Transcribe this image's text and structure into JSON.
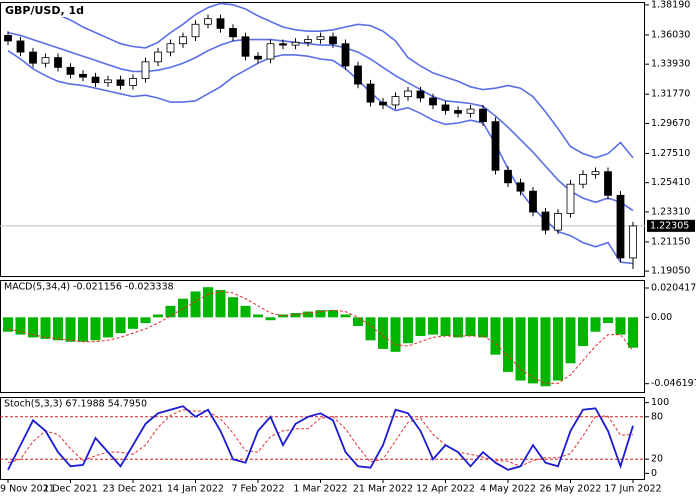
{
  "chart_data": [
    {
      "type": "candlestick",
      "title": "GBP/USD, 1d",
      "categories": [
        "9 Nov 2021",
        null,
        null,
        null,
        null,
        "1 Dec 2021",
        null,
        null,
        null,
        null,
        "23 Dec 2021",
        null,
        null,
        null,
        null,
        "14 Jan 2022",
        null,
        null,
        null,
        null,
        "7 Feb 2022",
        null,
        null,
        null,
        null,
        "1 Mar 2022",
        null,
        null,
        null,
        null,
        "21 Mar 2022",
        null,
        null,
        null,
        null,
        "12 Apr 2022",
        null,
        null,
        null,
        null,
        "4 May 2022",
        null,
        null,
        null,
        null,
        "26 May 2022",
        null,
        null,
        null,
        null,
        "17 Jun 2022"
      ],
      "open": [
        1.36,
        1.356,
        1.348,
        1.34,
        1.344,
        1.337,
        1.332,
        1.33,
        1.326,
        1.328,
        1.324,
        1.329,
        1.341,
        1.348,
        1.354,
        1.359,
        1.368,
        1.372,
        1.365,
        1.359,
        1.345,
        1.343,
        1.354,
        1.353,
        1.355,
        1.357,
        1.359,
        1.354,
        1.338,
        1.325,
        1.312,
        1.31,
        1.316,
        1.32,
        1.315,
        1.31,
        1.306,
        1.304,
        1.307,
        1.298,
        1.263,
        1.254,
        1.248,
        1.233,
        1.22,
        1.232,
        1.253,
        1.26,
        1.262,
        1.245,
        1.2
      ],
      "high": [
        1.363,
        1.359,
        1.351,
        1.347,
        1.347,
        1.34,
        1.335,
        1.333,
        1.331,
        1.331,
        1.332,
        1.344,
        1.351,
        1.357,
        1.362,
        1.371,
        1.375,
        1.375,
        1.368,
        1.362,
        1.348,
        1.357,
        1.357,
        1.358,
        1.36,
        1.362,
        1.362,
        1.357,
        1.341,
        1.328,
        1.315,
        1.319,
        1.323,
        1.323,
        1.318,
        1.313,
        1.309,
        1.31,
        1.31,
        1.301,
        1.266,
        1.257,
        1.251,
        1.236,
        1.235,
        1.256,
        1.263,
        1.265,
        1.265,
        1.248,
        1.226
      ],
      "low": [
        1.353,
        1.345,
        1.337,
        1.337,
        1.334,
        1.329,
        1.327,
        1.323,
        1.323,
        1.321,
        1.321,
        1.326,
        1.338,
        1.345,
        1.351,
        1.356,
        1.365,
        1.362,
        1.356,
        1.342,
        1.34,
        1.34,
        1.35,
        1.35,
        1.352,
        1.354,
        1.351,
        1.335,
        1.322,
        1.309,
        1.307,
        1.307,
        1.313,
        1.312,
        1.307,
        1.303,
        1.301,
        1.301,
        1.295,
        1.26,
        1.251,
        1.245,
        1.23,
        1.217,
        1.217,
        1.229,
        1.25,
        1.257,
        1.242,
        1.197,
        1.192
      ],
      "close": [
        1.356,
        1.348,
        1.34,
        1.344,
        1.337,
        1.332,
        1.33,
        1.326,
        1.328,
        1.324,
        1.329,
        1.341,
        1.348,
        1.354,
        1.359,
        1.368,
        1.372,
        1.365,
        1.359,
        1.345,
        1.343,
        1.354,
        1.353,
        1.355,
        1.357,
        1.359,
        1.354,
        1.338,
        1.325,
        1.312,
        1.31,
        1.316,
        1.32,
        1.315,
        1.31,
        1.306,
        1.304,
        1.307,
        1.298,
        1.263,
        1.254,
        1.248,
        1.233,
        1.22,
        1.232,
        1.253,
        1.26,
        1.262,
        1.245,
        1.2,
        1.223
      ],
      "up_color": "#ffffff",
      "down_color": "#000000",
      "bands": {
        "color": "#5b6ee8",
        "upper": [
          1.375,
          1.377,
          1.378,
          1.377,
          1.375,
          1.371,
          1.366,
          1.362,
          1.358,
          1.354,
          1.352,
          1.351,
          1.355,
          1.362,
          1.368,
          1.375,
          1.38,
          1.383,
          1.382,
          1.379,
          1.374,
          1.37,
          1.366,
          1.364,
          1.363,
          1.363,
          1.364,
          1.366,
          1.368,
          1.367,
          1.363,
          1.356,
          1.344,
          1.338,
          1.333,
          1.33,
          1.327,
          1.323,
          1.321,
          1.322,
          1.324,
          1.322,
          1.316,
          1.305,
          1.293,
          1.28,
          1.275,
          1.272,
          1.275,
          1.283,
          1.272
        ],
        "middle": [
          1.362,
          1.36,
          1.357,
          1.354,
          1.351,
          1.348,
          1.345,
          1.342,
          1.339,
          1.336,
          1.334,
          1.334,
          1.335,
          1.337,
          1.34,
          1.344,
          1.349,
          1.353,
          1.356,
          1.357,
          1.357,
          1.357,
          1.356,
          1.355,
          1.354,
          1.353,
          1.353,
          1.351,
          1.348,
          1.343,
          1.337,
          1.331,
          1.326,
          1.321,
          1.316,
          1.313,
          1.312,
          1.311,
          1.309,
          1.302,
          1.294,
          1.285,
          1.276,
          1.266,
          1.256,
          1.248,
          1.243,
          1.24,
          1.243,
          1.24,
          1.234
        ],
        "lower": [
          1.349,
          1.343,
          1.336,
          1.331,
          1.327,
          1.325,
          1.324,
          1.322,
          1.32,
          1.318,
          1.316,
          1.317,
          1.315,
          1.312,
          1.312,
          1.313,
          1.318,
          1.323,
          1.33,
          1.335,
          1.34,
          1.344,
          1.346,
          1.346,
          1.345,
          1.343,
          1.342,
          1.336,
          1.328,
          1.319,
          1.311,
          1.306,
          1.308,
          1.304,
          1.299,
          1.296,
          1.297,
          1.299,
          1.297,
          1.282,
          1.264,
          1.248,
          1.236,
          1.227,
          1.219,
          1.216,
          1.211,
          1.208,
          1.211,
          1.197,
          1.196
        ]
      },
      "ylim": [
        1.187,
        1.384
      ],
      "yticks": [
        {
          "value": 1.3819,
          "label": "1.38190"
        },
        {
          "value": 1.3603,
          "label": "1.36030"
        },
        {
          "value": 1.3393,
          "label": "1.33930"
        },
        {
          "value": 1.3177,
          "label": "1.31770"
        },
        {
          "value": 1.2967,
          "label": "1.29670"
        },
        {
          "value": 1.2751,
          "label": "1.27510"
        },
        {
          "value": 1.2541,
          "label": "1.25410"
        },
        {
          "value": 1.2331,
          "label": "1.23310"
        },
        {
          "value": 1.2115,
          "label": "1.21150"
        },
        {
          "value": 1.1905,
          "label": "1.19050"
        }
      ],
      "last_price": {
        "value": 1.22305,
        "label": "1.22305"
      }
    },
    {
      "type": "macd",
      "title": "MACD(5,34,4) -0.021156 -0.023338",
      "histogram": {
        "color": "#00b400",
        "values": [
          -0.01,
          -0.012,
          -0.014,
          -0.015,
          -0.016,
          -0.017,
          -0.017,
          -0.016,
          -0.014,
          -0.011,
          -0.008,
          -0.004,
          0.002,
          0.008,
          0.013,
          0.018,
          0.021,
          0.019,
          0.014,
          0.008,
          0.002,
          -0.002,
          0.002,
          0.003,
          0.004,
          0.005,
          0.005,
          0.002,
          -0.006,
          -0.016,
          -0.022,
          -0.024,
          -0.018,
          -0.013,
          -0.012,
          -0.013,
          -0.014,
          -0.013,
          -0.014,
          -0.026,
          -0.038,
          -0.044,
          -0.046,
          -0.048,
          -0.044,
          -0.032,
          -0.02,
          -0.01,
          -0.004,
          -0.012,
          -0.021156
        ]
      },
      "signal": {
        "color": "#e03030",
        "values": [
          -0.008,
          -0.01,
          -0.012,
          -0.014,
          -0.015,
          -0.016,
          -0.017,
          -0.017,
          -0.016,
          -0.014,
          -0.011,
          -0.008,
          -0.004,
          0.001,
          0.006,
          0.011,
          0.016,
          0.018,
          0.017,
          0.013,
          0.008,
          0.003,
          0.001,
          0.002,
          0.003,
          0.004,
          0.005,
          0.004,
          0.0,
          -0.006,
          -0.013,
          -0.019,
          -0.02,
          -0.017,
          -0.014,
          -0.013,
          -0.013,
          -0.013,
          -0.013,
          -0.018,
          -0.027,
          -0.036,
          -0.042,
          -0.046,
          -0.046,
          -0.04,
          -0.03,
          -0.02,
          -0.012,
          -0.012,
          -0.023338
        ]
      },
      "ylim": [
        -0.052,
        0.026
      ],
      "yticks": [
        0.020417,
        {
          "value": 0,
          "label": "0.00"
        },
        -0.046197
      ]
    },
    {
      "type": "stochastic",
      "title": "Stoch(5,3,3) 67.1988 54.7950",
      "main": {
        "color": "#1a1ad0",
        "values": [
          5,
          40,
          75,
          60,
          30,
          10,
          12,
          50,
          30,
          10,
          40,
          70,
          85,
          90,
          95,
          80,
          90,
          60,
          20,
          15,
          60,
          80,
          40,
          70,
          80,
          85,
          75,
          30,
          10,
          8,
          40,
          90,
          85,
          60,
          20,
          40,
          30,
          10,
          30,
          15,
          5,
          10,
          40,
          15,
          10,
          60,
          90,
          92,
          60,
          10,
          67.1988
        ]
      },
      "signal": {
        "color": "#e03030",
        "values": [
          15,
          20,
          45,
          60,
          55,
          35,
          18,
          25,
          30,
          30,
          27,
          40,
          65,
          82,
          90,
          88,
          88,
          77,
          57,
          32,
          30,
          52,
          60,
          63,
          63,
          78,
          80,
          63,
          38,
          16,
          20,
          46,
          72,
          78,
          55,
          40,
          30,
          27,
          23,
          18,
          17,
          10,
          18,
          22,
          22,
          28,
          53,
          81,
          81,
          54,
          54.795
        ]
      },
      "levels": [
        80,
        20
      ],
      "level_color": "#d02020",
      "ylim": [
        -8,
        108
      ],
      "yticks": [
        100,
        80,
        20,
        0
      ]
    }
  ]
}
